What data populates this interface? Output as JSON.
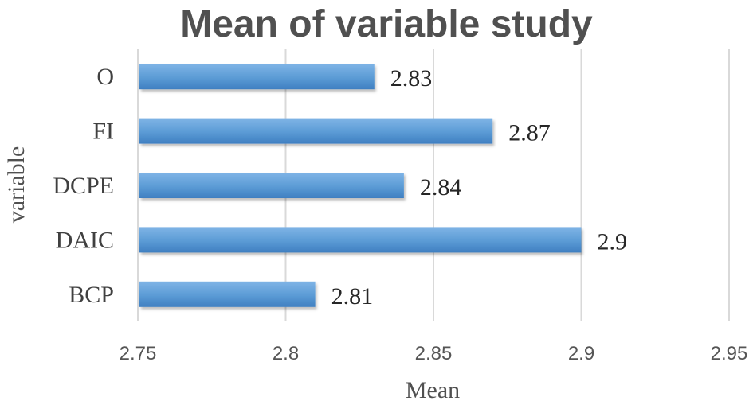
{
  "chart_data": {
    "type": "bar",
    "orientation": "horizontal",
    "title": "Mean of variable study",
    "xlabel": "Mean",
    "ylabel": "variable",
    "categories": [
      "O",
      "FI",
      "DCPE",
      "DAIC",
      "BCP"
    ],
    "values": [
      2.83,
      2.87,
      2.84,
      2.9,
      2.81
    ],
    "data_labels": [
      "2.83",
      "2.87",
      "2.84",
      "2.9",
      "2.81"
    ],
    "xlim": [
      2.75,
      2.95
    ],
    "xticks": [
      2.75,
      2.8,
      2.85,
      2.9,
      2.95
    ],
    "xtick_labels": [
      "2.75",
      "2.8",
      "2.85",
      "2.9",
      "2.95"
    ],
    "grid": true,
    "legend": "none",
    "bar_color": "#5b9bd5",
    "bar_color_dark": "#3f7fc1"
  }
}
